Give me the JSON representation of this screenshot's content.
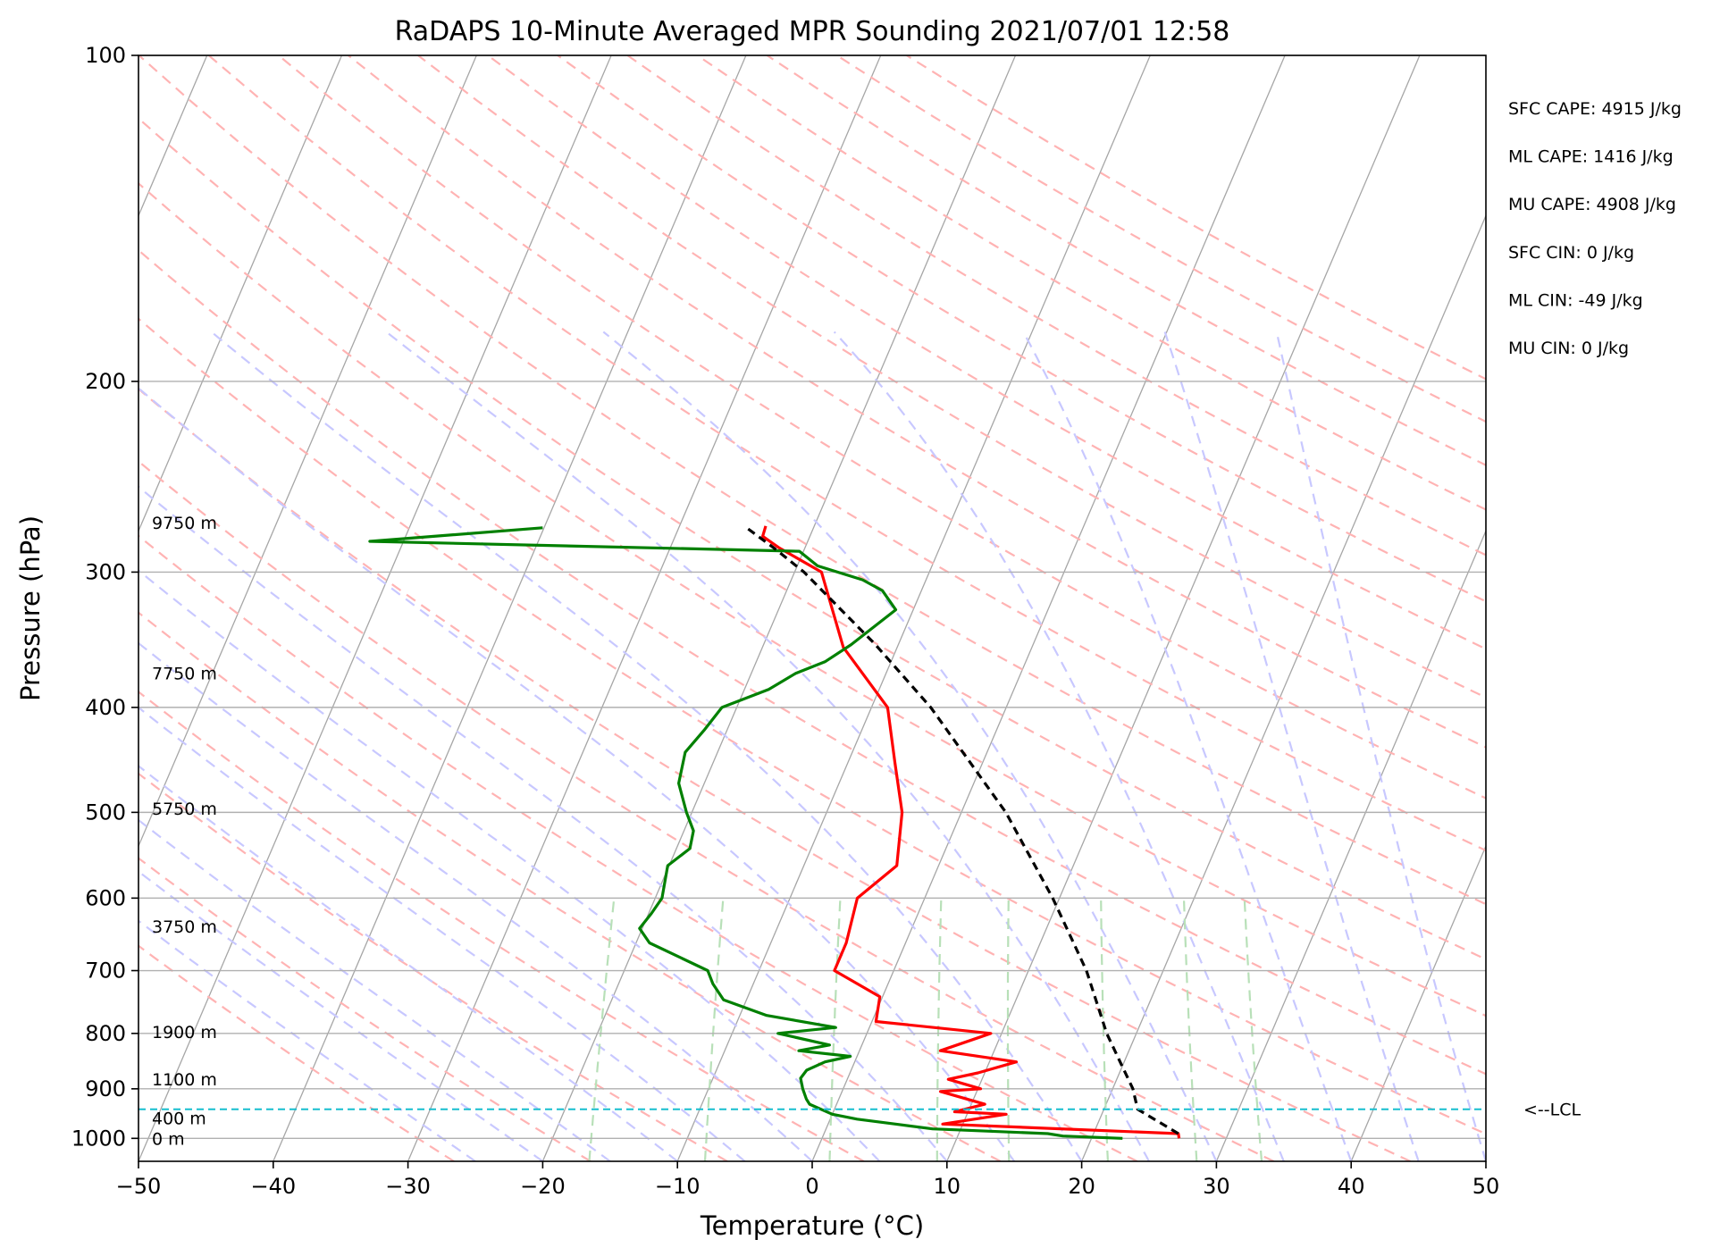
{
  "chart_data": {
    "type": "line",
    "title": "RaDAPS 10-Minute Averaged MPR Sounding 2021/07/01 12:58",
    "xlabel": "Temperature (°C)",
    "ylabel": "Pressure (hPa)",
    "xlim": [
      -50,
      50
    ],
    "ylim": [
      1050,
      100
    ],
    "y_scale": "log",
    "x_ticks": [
      -50,
      -40,
      -30,
      -20,
      -10,
      0,
      10,
      20,
      30,
      40,
      50
    ],
    "x_tick_labels": [
      "−50",
      "−40",
      "−30",
      "−20",
      "−10",
      "0",
      "10",
      "20",
      "30",
      "40",
      "50"
    ],
    "y_ticks": [
      100,
      200,
      300,
      400,
      500,
      600,
      700,
      800,
      900,
      1000
    ],
    "y_tick_labels": [
      "100",
      "200",
      "300",
      "400",
      "500",
      "600",
      "700",
      "800",
      "900",
      "1000"
    ],
    "height_labels": [
      {
        "text": "9750 m",
        "p": 270
      },
      {
        "text": "7750 m",
        "p": 372
      },
      {
        "text": "5750 m",
        "p": 496
      },
      {
        "text": "3750 m",
        "p": 637
      },
      {
        "text": "1900 m",
        "p": 797
      },
      {
        "text": "1100 m",
        "p": 882
      },
      {
        "text": "400 m",
        "p": 958
      },
      {
        "text": "0 m",
        "p": 1000
      }
    ],
    "lcl": {
      "label": "<--LCL",
      "p": 940
    },
    "indices": [
      "SFC CAPE: 4915 J/kg",
      "ML CAPE: 1416 J/kg",
      "MU CAPE: 4908 J/kg",
      "SFC CIN: 0 J/kg",
      "ML CIN: -49 J/kg",
      "MU CIN: 0 J/kg"
    ],
    "series": [
      {
        "name": "",
        "kind": "temperature",
        "color": "#ff0000",
        "points": [
          [
            1000,
            26.5
          ],
          [
            990,
            26.3
          ],
          [
            970,
            8.5
          ],
          [
            950,
            12.9
          ],
          [
            945,
            9.0
          ],
          [
            930,
            11.0
          ],
          [
            905,
            7.3
          ],
          [
            900,
            10.2
          ],
          [
            882,
            7.5
          ],
          [
            870,
            9.5
          ],
          [
            850,
            12.0
          ],
          [
            830,
            6.0
          ],
          [
            800,
            9.2
          ],
          [
            780,
            0.3
          ],
          [
            740,
            -0.2
          ],
          [
            700,
            -4.4
          ],
          [
            660,
            -4.4
          ],
          [
            600,
            -5.0
          ],
          [
            560,
            -3.1
          ],
          [
            500,
            -4.4
          ],
          [
            450,
            -6.5
          ],
          [
            400,
            -8.8
          ],
          [
            352,
            -14.0
          ],
          [
            300,
            -18.0
          ],
          [
            285,
            -21.9
          ],
          [
            278,
            -23.5
          ],
          [
            272,
            -23.6
          ]
        ]
      },
      {
        "name": "",
        "kind": "dewpoint",
        "color": "#008000",
        "points": [
          [
            1000,
            22.3
          ],
          [
            995,
            17.8
          ],
          [
            990,
            16.6
          ],
          [
            980,
            7.9
          ],
          [
            970,
            5.0
          ],
          [
            960,
            2.0
          ],
          [
            950,
            0.0
          ],
          [
            930,
            -2.0
          ],
          [
            920,
            -2.4
          ],
          [
            900,
            -3.0
          ],
          [
            880,
            -3.5
          ],
          [
            865,
            -3.3
          ],
          [
            850,
            -2.2
          ],
          [
            840,
            -0.5
          ],
          [
            830,
            -4.5
          ],
          [
            820,
            -2.4
          ],
          [
            800,
            -6.6
          ],
          [
            790,
            -2.5
          ],
          [
            770,
            -8.0
          ],
          [
            745,
            -11.7
          ],
          [
            720,
            -13.0
          ],
          [
            700,
            -13.8
          ],
          [
            660,
            -19.0
          ],
          [
            640,
            -20.2
          ],
          [
            620,
            -19.8
          ],
          [
            600,
            -19.5
          ],
          [
            560,
            -20.1
          ],
          [
            540,
            -19.0
          ],
          [
            520,
            -19.3
          ],
          [
            500,
            -20.4
          ],
          [
            470,
            -21.9
          ],
          [
            440,
            -22.4
          ],
          [
            420,
            -21.7
          ],
          [
            400,
            -21.1
          ],
          [
            385,
            -18.2
          ],
          [
            372,
            -16.7
          ],
          [
            363,
            -14.9
          ],
          [
            350,
            -13.5
          ],
          [
            325,
            -11.3
          ],
          [
            312,
            -12.9
          ],
          [
            305,
            -14.7
          ],
          [
            296,
            -18.5
          ],
          [
            287,
            -20.3
          ],
          [
            281,
            -52.5
          ],
          [
            273,
            -40.1
          ]
        ]
      },
      {
        "name": "",
        "kind": "parcel",
        "color": "#000000",
        "points": [
          [
            990,
            26.3
          ],
          [
            940,
            22.5
          ],
          [
            900,
            21.5
          ],
          [
            850,
            19.7
          ],
          [
            800,
            17.8
          ],
          [
            700,
            14.3
          ],
          [
            600,
            9.5
          ],
          [
            500,
            3.3
          ],
          [
            400,
            -5.6
          ],
          [
            350,
            -11.7
          ],
          [
            300,
            -19.3
          ],
          [
            285,
            -22.3
          ],
          [
            272,
            -25.2
          ]
        ]
      }
    ]
  }
}
